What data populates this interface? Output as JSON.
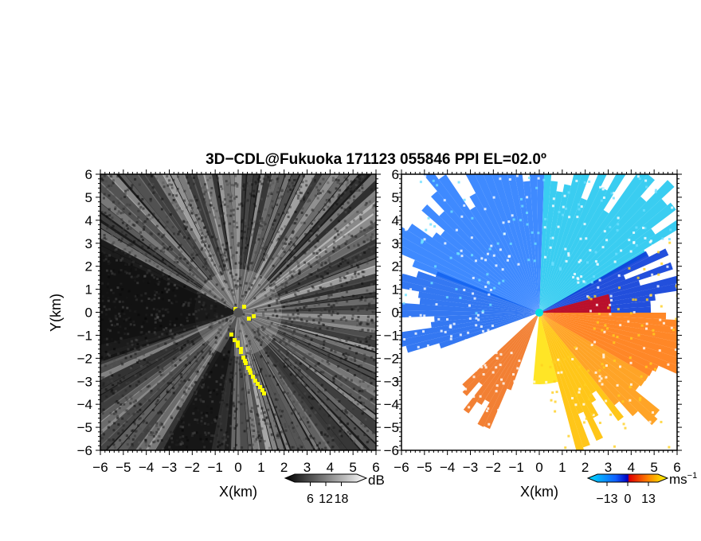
{
  "title": "3D−CDL@Fukuoka 171123 055846 PPI EL=02.0º",
  "chart_data": [
    {
      "type": "heatmap",
      "panel": "reflectivity",
      "xlabel": "X(km)",
      "ylabel": "Y(km)",
      "xlim": [
        -6,
        6
      ],
      "ylim": [
        -6,
        6
      ],
      "xticks": [
        "−6",
        "−5",
        "−4",
        "−3",
        "−2",
        "−1",
        "0",
        "1",
        "2",
        "3",
        "4",
        "5",
        "6"
      ],
      "yticks": [
        "−6",
        "−5",
        "−4",
        "−3",
        "−2",
        "−1",
        "0",
        "1",
        "2",
        "3",
        "4",
        "5",
        "6"
      ],
      "colorbar": {
        "unit": "dB",
        "ticks": [
          "6",
          "12",
          "18"
        ],
        "range": [
          0,
          24
        ],
        "colors": [
          "#000000",
          "#ffffff"
        ]
      },
      "highlight_color": "#ffff00"
    },
    {
      "type": "heatmap",
      "panel": "doppler-velocity",
      "xlabel": "X(km)",
      "xlim": [
        -6,
        6
      ],
      "ylim": [
        -6,
        6
      ],
      "xticks": [
        "−6",
        "−5",
        "−4",
        "−3",
        "−2",
        "−1",
        "0",
        "1",
        "2",
        "3",
        "4",
        "5",
        "6"
      ],
      "yticks": [
        "6",
        "5",
        "4",
        "3",
        "2",
        "1",
        "0",
        "−1",
        "−2",
        "−3",
        "−4",
        "−5",
        "−6"
      ],
      "colorbar": {
        "unit": "ms",
        "unit_exponent": "−1",
        "ticks": [
          "−13",
          "0",
          "13"
        ],
        "range": [
          -19,
          19
        ],
        "colors": [
          "#00ffff",
          "#0000ff",
          "#ff0000",
          "#ffff00"
        ]
      }
    }
  ]
}
